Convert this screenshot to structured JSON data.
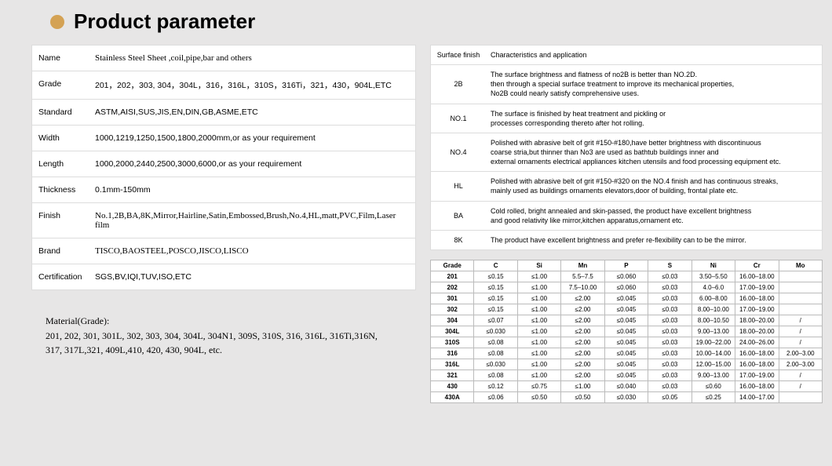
{
  "title": "Product parameter",
  "colors": {
    "page_bg": "#e7e6e6",
    "dot": "#d4a254",
    "panel_bg": "#ffffff",
    "border": "#dcdcdc",
    "chem_border": "#bbbbbb",
    "text": "#000000"
  },
  "spec": {
    "rows": [
      {
        "label": "Name",
        "value": "Stainless Steel Sheet ,coil,pipe,bar and others"
      },
      {
        "label": "Grade",
        "value": "201，202，303, 304，304L，316，316L，310S，316Ti，321，430，904L,ETC"
      },
      {
        "label": "Standard",
        "value": "ASTM,AISI,SUS,JIS,EN,DIN,GB,ASME,ETC"
      },
      {
        "label": "Width",
        "value": "1000,1219,1250,1500,1800,2000mm,or as your requirement"
      },
      {
        "label": "Length",
        "value": "1000,2000,2440,2500,3000,6000,or as your requirement"
      },
      {
        "label": "Thickness",
        "value": "0.1mm-150mm"
      },
      {
        "label": "Finish",
        "value": "No.1,2B,BA,8K,Mirror,Hairline,Satin,Embossed,Brush,No.4,HL,matt,PVC,Film,Laser film"
      },
      {
        "label": "Brand",
        "value": "TISCO,BAOSTEEL,POSCO,JISCO,LISCO"
      },
      {
        "label": "Certification",
        "value": "SGS,BV,IQI,TUV,ISO,ETC"
      }
    ]
  },
  "material": {
    "heading": "Material(Grade):",
    "body": "201, 202, 301, 301L, 302, 303, 304, 304L, 304N1, 309S, 310S, 316, 316L, 316Ti,316N, 317, 317L,321, 409L,410, 420, 430, 904L, etc."
  },
  "surface": {
    "head_code": "Surface finish",
    "head_desc": "Characteristics and application",
    "rows": [
      {
        "code": "2B",
        "desc": "The surface brightness and flatness of no2B is better than NO.2D.\n then through a special surface treatment to improve its mechanical properties,\nNo2B could nearly satisfy comprehensive uses."
      },
      {
        "code": "NO.1",
        "desc": "The surface is finished by heat treatment and pickling or\nprocesses corresponding thereto after hot rolling."
      },
      {
        "code": "NO.4",
        "desc": "Polished with abrasive belt of grit #150-#180,have better brightness with discontinuous\ncoarse stria,but thinner than No3 are used as bathtub buildings inner and\nexternal ornaments electrical appliances kitchen utensils and food processing equipment etc."
      },
      {
        "code": "HL",
        "desc": "Polished with abrasive belt of grit #150-#320 on the NO.4 finish and has continuous streaks,\n mainly used as buildings ornaments elevators,door of building, frontal plate etc."
      },
      {
        "code": "BA",
        "desc": "Cold rolled, bright annealed and skin-passed, the product have excellent brightness\nand good relativity like mirror,kitchen apparatus,ornament etc."
      },
      {
        "code": "8K",
        "desc": "The product have excellent brightness and prefer re-flexibility can to be the mirror."
      }
    ]
  },
  "chem": {
    "columns": [
      "Grade",
      "C",
      "Si",
      "Mn",
      "P",
      "S",
      "Ni",
      "Cr",
      "Mo"
    ],
    "rows": [
      [
        "201",
        "≤0.15",
        "≤1.00",
        "5.5–7.5",
        "≤0.060",
        "≤0.03",
        "3.50–5.50",
        "16.00–18.00",
        ""
      ],
      [
        "202",
        "≤0.15",
        "≤1.00",
        "7.5–10.00",
        "≤0.060",
        "≤0.03",
        "4.0–6.0",
        "17.00–19.00",
        ""
      ],
      [
        "301",
        "≤0.15",
        "≤1.00",
        "≤2.00",
        "≤0.045",
        "≤0.03",
        "6.00–8.00",
        "16.00–18.00",
        ""
      ],
      [
        "302",
        "≤0.15",
        "≤1.00",
        "≤2.00",
        "≤0.045",
        "≤0.03",
        "8.00–10.00",
        "17.00–19.00",
        ""
      ],
      [
        "304",
        "≤0.07",
        "≤1.00",
        "≤2.00",
        "≤0.045",
        "≤0.03",
        "8.00–10.50",
        "18.00–20.00",
        "/"
      ],
      [
        "304L",
        "≤0.030",
        "≤1.00",
        "≤2.00",
        "≤0.045",
        "≤0.03",
        "9.00–13.00",
        "18.00–20.00",
        "/"
      ],
      [
        "310S",
        "≤0.08",
        "≤1.00",
        "≤2.00",
        "≤0.045",
        "≤0.03",
        "19.00–22.00",
        "24.00–26.00",
        "/"
      ],
      [
        "316",
        "≤0.08",
        "≤1.00",
        "≤2.00",
        "≤0.045",
        "≤0.03",
        "10.00–14.00",
        "16.00–18.00",
        "2.00–3.00"
      ],
      [
        "316L",
        "≤0.030",
        "≤1.00",
        "≤2.00",
        "≤0.045",
        "≤0.03",
        "12.00–15.00",
        "16.00–18.00",
        "2.00–3.00"
      ],
      [
        "321",
        "≤0.08",
        "≤1.00",
        "≤2.00",
        "≤0.045",
        "≤0.03",
        "9.00–13.00",
        "17.00–19.00",
        "/"
      ],
      [
        "430",
        "≤0.12",
        "≤0.75",
        "≤1.00",
        "≤0.040",
        "≤0.03",
        "≤0.60",
        "16.00–18.00",
        "/"
      ],
      [
        "430A",
        "≤0.06",
        "≤0.50",
        "≤0.50",
        "≤0.030",
        "≤0.05",
        "≤0.25",
        "14.00–17.00",
        ""
      ]
    ]
  }
}
